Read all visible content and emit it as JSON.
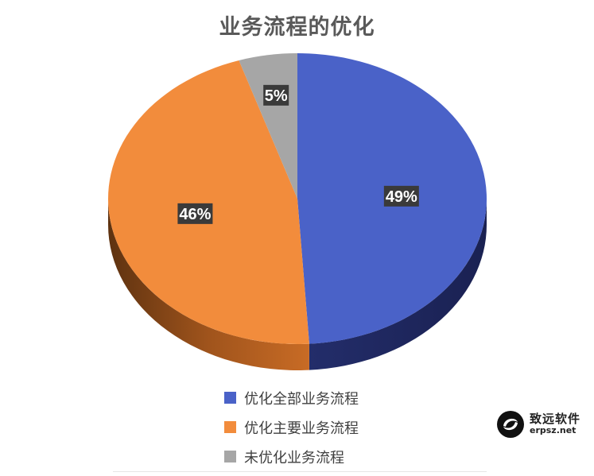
{
  "chart_data": {
    "type": "pie",
    "title": "业务流程的优化",
    "categories": [
      "优化全部业务流程",
      "优化主要业务流程",
      "未优化业务流程"
    ],
    "values": [
      49,
      46,
      5
    ],
    "data_labels": [
      "49%",
      "46%",
      "5%"
    ],
    "colors": [
      "#4A62C8",
      "#F28C3C",
      "#A6A6A6"
    ],
    "legend_position": "bottom"
  },
  "watermark": {
    "name": "致远软件",
    "url": "erpsz.net"
  }
}
